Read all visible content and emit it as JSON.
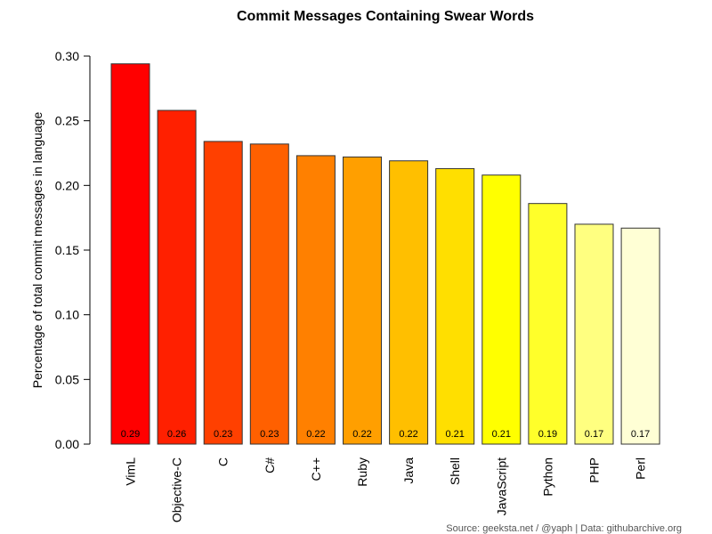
{
  "chart_data": {
    "type": "bar",
    "title": "Commit Messages Containing Swear Words",
    "ylabel": "Percentage of total commit messages in language",
    "xlabel": "",
    "ylim": [
      0,
      0.3
    ],
    "yticks": [
      "0.00",
      "0.05",
      "0.10",
      "0.15",
      "0.20",
      "0.25",
      "0.30"
    ],
    "grid": false,
    "categories": [
      "VimL",
      "Objective-C",
      "C",
      "C#",
      "C++",
      "Ruby",
      "Java",
      "Shell",
      "JavaScript",
      "Python",
      "PHP",
      "Perl"
    ],
    "values": [
      0.294,
      0.258,
      0.234,
      0.232,
      0.223,
      0.222,
      0.219,
      0.213,
      0.208,
      0.186,
      0.17,
      0.167
    ],
    "value_labels": [
      "0.29",
      "0.26",
      "0.23",
      "0.23",
      "0.22",
      "0.22",
      "0.22",
      "0.21",
      "0.21",
      "0.19",
      "0.17",
      "0.17"
    ],
    "colors": [
      "#FF0000",
      "#FF2000",
      "#FF4000",
      "#FF6000",
      "#FF8000",
      "#FF9F00",
      "#FFBF00",
      "#FFDF00",
      "#FFFF00",
      "#FFFF2A",
      "#FFFF80",
      "#FFFFD5"
    ],
    "source": "Source: geeksta.net / @yaph | Data: githubarchive.org"
  }
}
